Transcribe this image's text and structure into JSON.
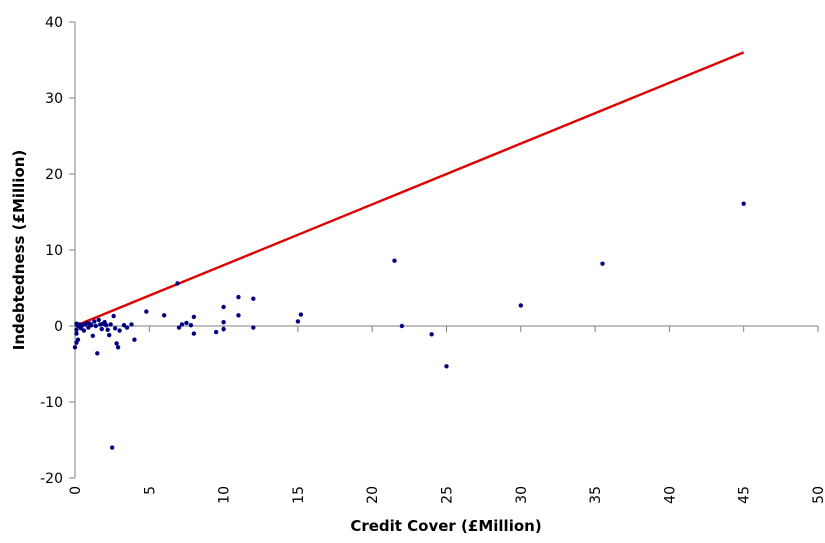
{
  "chart_data": {
    "type": "scatter",
    "title": "",
    "xlabel": "Credit Cover (£Million)",
    "ylabel": "Indebtedness (£Million)",
    "xlim": [
      0,
      50
    ],
    "ylim": [
      -20,
      40
    ],
    "x_ticks": [
      0,
      5,
      10,
      15,
      20,
      25,
      30,
      35,
      40,
      45,
      50
    ],
    "y_ticks": [
      -20,
      -10,
      0,
      10,
      20,
      30,
      40
    ],
    "grid": false,
    "legend": "none",
    "colors": {
      "points": "#00007f",
      "line": "#e00000",
      "axis": "#808080"
    },
    "series": [
      {
        "kind": "scatter",
        "points": [
          [
            0.0,
            -2.8
          ],
          [
            0.1,
            -2.2
          ],
          [
            0.2,
            -1.8
          ],
          [
            0.1,
            -1.0
          ],
          [
            0.1,
            -0.5
          ],
          [
            0.2,
            0.0
          ],
          [
            0.3,
            0.2
          ],
          [
            0.1,
            0.3
          ],
          [
            0.4,
            -0.3
          ],
          [
            0.5,
            0.1
          ],
          [
            0.6,
            -0.6
          ],
          [
            0.7,
            0.2
          ],
          [
            0.8,
            0.4
          ],
          [
            0.9,
            -0.2
          ],
          [
            1.0,
            0.3
          ],
          [
            1.1,
            0.1
          ],
          [
            1.2,
            -1.3
          ],
          [
            1.3,
            0.6
          ],
          [
            1.4,
            0.0
          ],
          [
            1.5,
            -3.6
          ],
          [
            1.6,
            0.8
          ],
          [
            1.7,
            0.2
          ],
          [
            1.8,
            -0.4
          ],
          [
            1.9,
            0.3
          ],
          [
            2.0,
            0.5
          ],
          [
            2.1,
            0.1
          ],
          [
            2.2,
            -0.5
          ],
          [
            2.3,
            -1.2
          ],
          [
            2.4,
            0.2
          ],
          [
            2.5,
            -16.0
          ],
          [
            2.6,
            1.3
          ],
          [
            2.7,
            -0.3
          ],
          [
            2.8,
            -2.3
          ],
          [
            2.9,
            -2.8
          ],
          [
            3.0,
            -0.6
          ],
          [
            3.3,
            0.1
          ],
          [
            3.5,
            -0.2
          ],
          [
            3.8,
            0.2
          ],
          [
            4.0,
            -1.8
          ],
          [
            4.8,
            1.9
          ],
          [
            6.0,
            1.4
          ],
          [
            6.9,
            5.6
          ],
          [
            7.0,
            -0.2
          ],
          [
            7.2,
            0.2
          ],
          [
            7.5,
            0.4
          ],
          [
            7.8,
            0.1
          ],
          [
            8.0,
            1.2
          ],
          [
            8.0,
            -1.0
          ],
          [
            9.5,
            -0.8
          ],
          [
            10.0,
            0.5
          ],
          [
            10.0,
            -0.4
          ],
          [
            10.0,
            2.5
          ],
          [
            11.0,
            3.8
          ],
          [
            11.0,
            1.4
          ],
          [
            12.0,
            3.6
          ],
          [
            12.0,
            -0.2
          ],
          [
            15.0,
            0.6
          ],
          [
            15.2,
            1.5
          ],
          [
            21.5,
            8.6
          ],
          [
            22.0,
            0.0
          ],
          [
            24.0,
            -1.1
          ],
          [
            25.0,
            -5.3
          ],
          [
            30.0,
            2.7
          ],
          [
            35.5,
            8.2
          ],
          [
            45.0,
            16.1
          ]
        ]
      },
      {
        "kind": "line",
        "points": [
          [
            0,
            0
          ],
          [
            45,
            36
          ]
        ]
      }
    ]
  }
}
